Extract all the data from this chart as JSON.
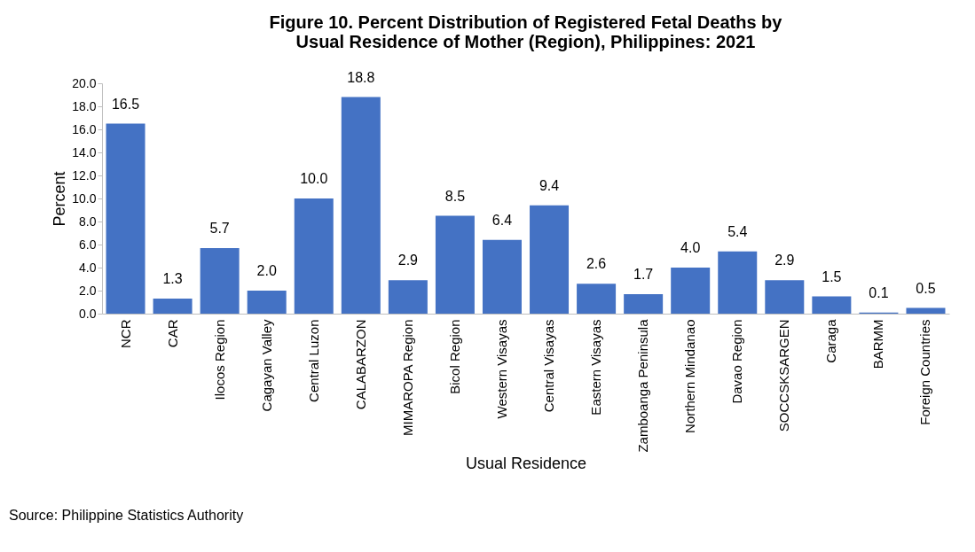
{
  "chart_data": {
    "type": "bar",
    "title": "Figure 10.  Percent Distribution of Registered Fetal Deaths by\nUsual Residence of Mother (Region), Philippines: 2021",
    "xlabel": "Usual Residence",
    "ylabel": "Percent",
    "categories": [
      "NCR",
      "CAR",
      "Ilocos Region",
      "Cagayan Valley",
      "Central Luzon",
      "CALABARZON",
      "MIMAROPA Region",
      "Bicol Region",
      "Western Visayas",
      "Central Visayas",
      "Eastern Visayas",
      "Zamboanga Peninsula",
      "Northern Mindanao",
      "Davao Region",
      "SOCCSKSARGEN",
      "Caraga",
      "BARMM",
      "Foreign Countries"
    ],
    "values": [
      16.5,
      1.3,
      5.7,
      2.0,
      10.0,
      18.8,
      2.9,
      8.5,
      6.4,
      9.4,
      2.6,
      1.7,
      4.0,
      5.4,
      2.9,
      1.5,
      0.1,
      0.5
    ],
    "value_labels": [
      "16.5",
      "1.3",
      "5.7",
      "2.0",
      "10.0",
      "18.8",
      "2.9",
      "8.5",
      "6.4",
      "9.4",
      "2.6",
      "1.7",
      "4.0",
      "5.4",
      "2.9",
      "1.5",
      "0.1",
      "0.5"
    ],
    "color": "#4472c4",
    "ylim": [
      0,
      20
    ],
    "yticks": [
      {
        "value": 0,
        "label": "0.0"
      },
      {
        "value": 2,
        "label": "2.0"
      },
      {
        "value": 4,
        "label": "4.0"
      },
      {
        "value": 6,
        "label": "6.0"
      },
      {
        "value": 8,
        "label": "8.0"
      },
      {
        "value": 10,
        "label": "10.0"
      },
      {
        "value": 12,
        "label": "12.0"
      },
      {
        "value": 14,
        "label": "14.0"
      },
      {
        "value": 16,
        "label": "16.0"
      },
      {
        "value": 18,
        "label": "18.0"
      },
      {
        "value": 20,
        "label": "20.0"
      }
    ],
    "grid": false,
    "annotations": [
      "Source: Philippine Statistics Authority"
    ]
  }
}
